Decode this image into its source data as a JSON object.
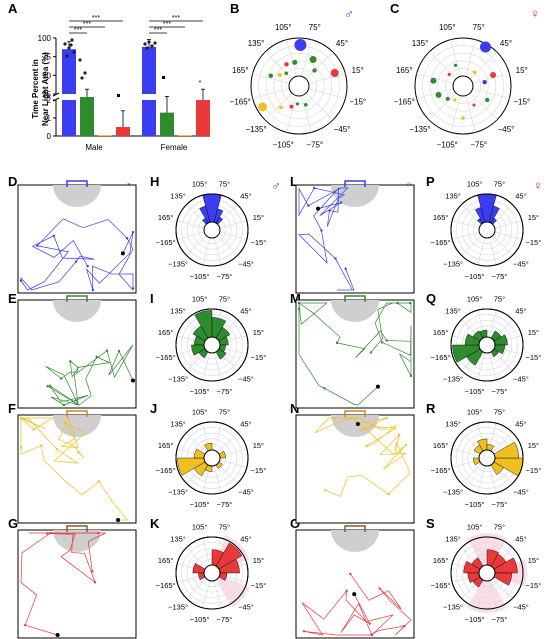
{
  "panel_letters": [
    "A",
    "B",
    "C",
    "D",
    "E",
    "F",
    "G",
    "H",
    "I",
    "J",
    "K",
    "L",
    "M",
    "N",
    "O",
    "P",
    "Q",
    "R",
    "S"
  ],
  "sex_symbols": {
    "male": "♂",
    "female": "♀"
  },
  "colors": {
    "blue": "#3a3ef0",
    "green": "#2e8b2e",
    "yellow": "#f0c020",
    "red": "#e83a3a",
    "light_area": "#cfcfcf",
    "pink_shade": "#f5d0dc",
    "male_symbol": "#2a3ad8",
    "female_symbol": "#c83030"
  },
  "polar_angle_labels": [
    "105°",
    "75°",
    "45°",
    "15°",
    "−15°",
    "−45°",
    "−75°",
    "−105°",
    "−135°",
    "−165°",
    "165°",
    "135°"
  ],
  "panel_A": {
    "ylabel": "Time Percent in\nNear Light Area (%)",
    "yticks_top": [
      "100",
      "75",
      "50",
      "25"
    ],
    "yticks_bottom": [
      "2",
      "1",
      "0"
    ],
    "groups": [
      "Male",
      "Female"
    ],
    "significance": [
      "***",
      "***",
      "***",
      "***",
      "***",
      "***"
    ]
  },
  "chart_data": {
    "type": "bar",
    "title": "",
    "xlabel": "",
    "ylabel": "Time Percent in Near Light Area (%)",
    "categories": [
      "Male",
      "Female"
    ],
    "axis_break": {
      "lower": [
        0,
        2
      ],
      "upper": [
        25,
        100
      ]
    },
    "series": [
      {
        "color": "#3a3ef0",
        "values": [
          85,
          88
        ]
      },
      {
        "color": "#2e8b2e",
        "values": [
          20,
          1.3
        ]
      },
      {
        "color": "#f0c020",
        "values": [
          0.05,
          0.05
        ]
      },
      {
        "color": "#e83a3a",
        "values": [
          0.5,
          2.0
        ]
      }
    ],
    "legend": "none"
  }
}
